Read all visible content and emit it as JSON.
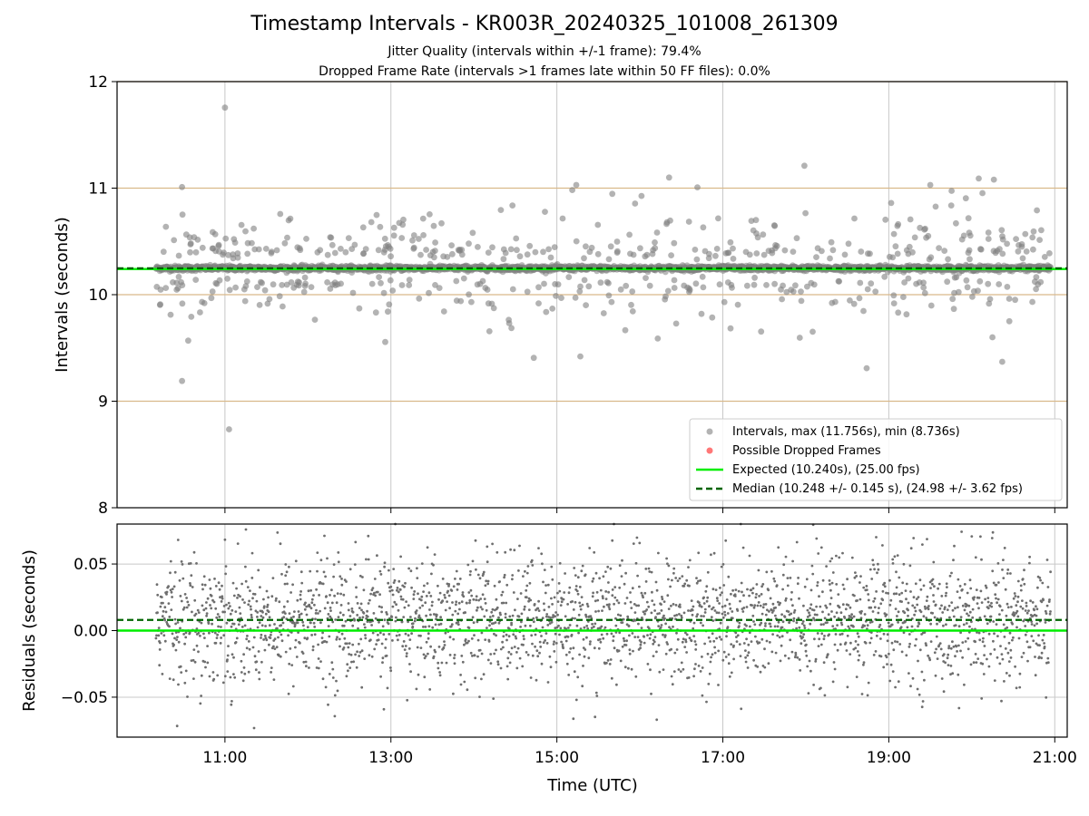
{
  "header": {
    "title": "Timestamp Intervals - KR003R_20240325_101008_261309",
    "subtitle_jitter": "Jitter Quality (intervals within +/-1 frame): 79.4%",
    "subtitle_dropped": "Dropped Frame Rate (intervals >1 frames late within 50 FF files): 0.0%"
  },
  "colors": {
    "points": "#808080",
    "dropped": "#ff5555",
    "expected": "#00ee00",
    "median": "#006400",
    "frame_lines": "#d9b98a",
    "grid": "#c8c8c8"
  },
  "chart_data": [
    {
      "type": "scatter",
      "panel": "intervals",
      "ylabel": "Intervals (seconds)",
      "ylim": [
        8,
        12
      ],
      "yticks": [
        "8",
        "9",
        "10",
        "11",
        "12"
      ],
      "xlim_hours": [
        9.7,
        21.15
      ],
      "xticks": [
        "11:00",
        "13:00",
        "15:00",
        "17:00",
        "19:00",
        "21:00"
      ],
      "grid": "vertical",
      "expected": 10.24,
      "median": 10.248,
      "frame_boundaries": [
        9.0,
        10.0,
        11.0,
        12.0
      ],
      "data_range_hours": [
        10.17,
        20.95
      ],
      "outliers": [
        {
          "x": "11:00",
          "y": 11.756
        },
        {
          "x": "11:03",
          "y": 8.736
        },
        {
          "x": "10:29",
          "y": 9.19
        },
        {
          "x": "10:29",
          "y": 11.01
        },
        {
          "x": "17:59",
          "y": 11.21
        },
        {
          "x": "20:05",
          "y": 11.09
        },
        {
          "x": "20:16",
          "y": 11.08
        },
        {
          "x": "15:14",
          "y": 11.03
        },
        {
          "x": "19:30",
          "y": 11.03
        },
        {
          "x": "18:44",
          "y": 9.31
        },
        {
          "x": "20:22",
          "y": 9.37
        },
        {
          "x": "15:17",
          "y": 9.42
        }
      ],
      "legend": {
        "position": "lower-right",
        "entries": [
          {
            "label": "Intervals, max (11.756s), min (8.736s)",
            "marker": "gray-dot"
          },
          {
            "label": "Possible Dropped Frames",
            "marker": "red-dot"
          },
          {
            "label": "Expected (10.240s), (25.00 fps)",
            "marker": "green-line"
          },
          {
            "label": "Median (10.248 +/- 0.145 s), (24.98 +/- 3.62 fps)",
            "marker": "dark-green-dashed"
          }
        ]
      }
    },
    {
      "type": "scatter",
      "panel": "residuals",
      "ylabel": "Residuals (seconds)",
      "xlabel": "Time (UTC)",
      "ylim": [
        -0.08,
        0.08
      ],
      "yticks": [
        "−0.05",
        "0.00",
        "0.05"
      ],
      "xlim_hours": [
        9.7,
        21.15
      ],
      "xticks": [
        "11:00",
        "13:00",
        "15:00",
        "17:00",
        "19:00",
        "21:00"
      ],
      "grid": "both",
      "expected_residual": 0.0,
      "median_residual": 0.008,
      "residual_range": [
        -0.075,
        0.08
      ],
      "data_range_hours": [
        10.17,
        20.95
      ]
    }
  ]
}
